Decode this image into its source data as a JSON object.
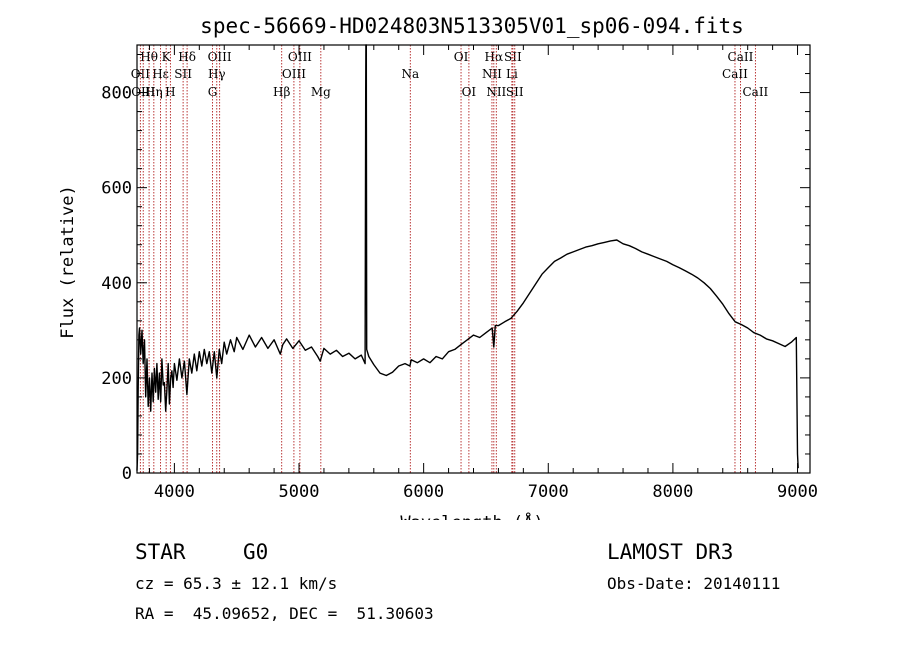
{
  "chart_data": {
    "type": "line",
    "title": "spec-56669-HD024803N513305V01_sp06-094.fits",
    "xlabel": "Wavelength (Å)",
    "ylabel": "Flux (relative)",
    "xlim": [
      3700,
      9100
    ],
    "ylim": [
      0,
      900
    ],
    "xticks": [
      4000,
      5000,
      6000,
      7000,
      8000,
      9000
    ],
    "yticks": [
      0,
      200,
      400,
      600,
      800
    ],
    "series": [
      {
        "name": "flux",
        "points": [
          [
            3700,
            5
          ],
          [
            3705,
            40
          ],
          [
            3710,
            180
          ],
          [
            3715,
            290
          ],
          [
            3720,
            305
          ],
          [
            3730,
            250
          ],
          [
            3740,
            300
          ],
          [
            3750,
            230
          ],
          [
            3760,
            280
          ],
          [
            3770,
            160
          ],
          [
            3780,
            240
          ],
          [
            3790,
            140
          ],
          [
            3800,
            200
          ],
          [
            3810,
            130
          ],
          [
            3820,
            210
          ],
          [
            3830,
            150
          ],
          [
            3840,
            220
          ],
          [
            3850,
            170
          ],
          [
            3860,
            230
          ],
          [
            3870,
            155
          ],
          [
            3880,
            210
          ],
          [
            3890,
            150
          ],
          [
            3900,
            240
          ],
          [
            3910,
            185
          ],
          [
            3920,
            190
          ],
          [
            3930,
            130
          ],
          [
            3940,
            175
          ],
          [
            3950,
            230
          ],
          [
            3960,
            145
          ],
          [
            3970,
            200
          ],
          [
            3980,
            215
          ],
          [
            3990,
            180
          ],
          [
            4000,
            230
          ],
          [
            4020,
            195
          ],
          [
            4040,
            240
          ],
          [
            4060,
            200
          ],
          [
            4080,
            235
          ],
          [
            4100,
            165
          ],
          [
            4120,
            240
          ],
          [
            4140,
            210
          ],
          [
            4160,
            250
          ],
          [
            4180,
            215
          ],
          [
            4200,
            255
          ],
          [
            4220,
            225
          ],
          [
            4240,
            260
          ],
          [
            4260,
            230
          ],
          [
            4280,
            255
          ],
          [
            4300,
            210
          ],
          [
            4320,
            255
          ],
          [
            4340,
            200
          ],
          [
            4360,
            260
          ],
          [
            4380,
            230
          ],
          [
            4400,
            275
          ],
          [
            4420,
            250
          ],
          [
            4450,
            280
          ],
          [
            4480,
            255
          ],
          [
            4500,
            285
          ],
          [
            4550,
            260
          ],
          [
            4600,
            290
          ],
          [
            4650,
            265
          ],
          [
            4700,
            285
          ],
          [
            4750,
            262
          ],
          [
            4800,
            280
          ],
          [
            4850,
            250
          ],
          [
            4870,
            270
          ],
          [
            4900,
            282
          ],
          [
            4950,
            262
          ],
          [
            5000,
            278
          ],
          [
            5050,
            258
          ],
          [
            5100,
            265
          ],
          [
            5150,
            245
          ],
          [
            5170,
            235
          ],
          [
            5200,
            262
          ],
          [
            5250,
            250
          ],
          [
            5300,
            258
          ],
          [
            5350,
            245
          ],
          [
            5400,
            252
          ],
          [
            5450,
            240
          ],
          [
            5500,
            248
          ],
          [
            5530,
            230
          ],
          [
            5535,
            800
          ],
          [
            5537,
            930
          ],
          [
            5540,
            900
          ],
          [
            5543,
            260
          ],
          [
            5560,
            245
          ],
          [
            5600,
            228
          ],
          [
            5650,
            210
          ],
          [
            5700,
            205
          ],
          [
            5750,
            212
          ],
          [
            5800,
            225
          ],
          [
            5850,
            230
          ],
          [
            5890,
            225
          ],
          [
            5900,
            238
          ],
          [
            5950,
            232
          ],
          [
            6000,
            240
          ],
          [
            6050,
            232
          ],
          [
            6100,
            245
          ],
          [
            6150,
            240
          ],
          [
            6200,
            255
          ],
          [
            6250,
            260
          ],
          [
            6300,
            270
          ],
          [
            6350,
            280
          ],
          [
            6400,
            290
          ],
          [
            6450,
            285
          ],
          [
            6500,
            295
          ],
          [
            6550,
            305
          ],
          [
            6563,
            265
          ],
          [
            6575,
            310
          ],
          [
            6600,
            310
          ],
          [
            6650,
            318
          ],
          [
            6700,
            325
          ],
          [
            6750,
            340
          ],
          [
            6800,
            358
          ],
          [
            6850,
            378
          ],
          [
            6900,
            398
          ],
          [
            6950,
            418
          ],
          [
            7000,
            432
          ],
          [
            7050,
            445
          ],
          [
            7100,
            452
          ],
          [
            7150,
            460
          ],
          [
            7200,
            465
          ],
          [
            7250,
            470
          ],
          [
            7300,
            475
          ],
          [
            7350,
            478
          ],
          [
            7400,
            482
          ],
          [
            7450,
            485
          ],
          [
            7500,
            488
          ],
          [
            7550,
            490
          ],
          [
            7600,
            482
          ],
          [
            7650,
            478
          ],
          [
            7700,
            472
          ],
          [
            7750,
            465
          ],
          [
            7800,
            460
          ],
          [
            7850,
            455
          ],
          [
            7900,
            450
          ],
          [
            7950,
            445
          ],
          [
            8000,
            438
          ],
          [
            8050,
            432
          ],
          [
            8100,
            425
          ],
          [
            8150,
            418
          ],
          [
            8200,
            410
          ],
          [
            8250,
            400
          ],
          [
            8300,
            388
          ],
          [
            8350,
            372
          ],
          [
            8400,
            355
          ],
          [
            8450,
            335
          ],
          [
            8500,
            318
          ],
          [
            8550,
            312
          ],
          [
            8600,
            305
          ],
          [
            8650,
            295
          ],
          [
            8700,
            290
          ],
          [
            8750,
            282
          ],
          [
            8800,
            278
          ],
          [
            8850,
            272
          ],
          [
            8900,
            266
          ],
          [
            8950,
            275
          ],
          [
            8990,
            285
          ],
          [
            9000,
            40
          ],
          [
            9005,
            10
          ]
        ]
      }
    ],
    "line_markers": [
      {
        "label": "Hθ",
        "wavelength": 3797,
        "row": 1
      },
      {
        "label": "OII",
        "wavelength": 3727,
        "row": 2
      },
      {
        "label": "OIII",
        "wavelength": 3750,
        "row": 3
      },
      {
        "label": "K",
        "wavelength": 3934,
        "row": 1
      },
      {
        "label": "Hε",
        "wavelength": 3889,
        "row": 2
      },
      {
        "label": "Hη",
        "wavelength": 3835,
        "row": 3
      },
      {
        "label": "SII",
        "wavelength": 4070,
        "row": 2
      },
      {
        "label": "H",
        "wavelength": 3968,
        "row": 3
      },
      {
        "label": "Hδ",
        "wavelength": 4102,
        "row": 1
      },
      {
        "label": "OIII",
        "wavelength": 4363,
        "row": 1
      },
      {
        "label": "Hγ",
        "wavelength": 4340,
        "row": 2
      },
      {
        "label": "G",
        "wavelength": 4306,
        "row": 3
      },
      {
        "label": "OIII",
        "wavelength": 5007,
        "row": 1
      },
      {
        "label": "OIII",
        "wavelength": 4959,
        "row": 2
      },
      {
        "label": "Hβ",
        "wavelength": 4861,
        "row": 3
      },
      {
        "label": "Mg",
        "wavelength": 5175,
        "row": 3
      },
      {
        "label": "Na",
        "wavelength": 5893,
        "row": 2
      },
      {
        "label": "OI",
        "wavelength": 6300,
        "row": 1
      },
      {
        "label": "OI",
        "wavelength": 6363,
        "row": 3
      },
      {
        "label": "Hα",
        "wavelength": 6563,
        "row": 1
      },
      {
        "label": "NII",
        "wavelength": 6548,
        "row": 2
      },
      {
        "label": "NII",
        "wavelength": 6583,
        "row": 3
      },
      {
        "label": "SII",
        "wavelength": 6716,
        "row": 1
      },
      {
        "label": "Li",
        "wavelength": 6708,
        "row": 2
      },
      {
        "label": "SII",
        "wavelength": 6731,
        "row": 3
      },
      {
        "label": "CaII",
        "wavelength": 8542,
        "row": 1
      },
      {
        "label": "CaII",
        "wavelength": 8498,
        "row": 2
      },
      {
        "label": "CaII",
        "wavelength": 8662,
        "row": 3
      }
    ],
    "colors": {
      "axis": "#000000",
      "line": "#000000",
      "marker": "#b22222"
    }
  },
  "info": {
    "object_class": "STAR",
    "subclass": "G0",
    "cz": "cz = 65.3 ± 12.1 km/s",
    "coords": "RA =  45.09652, DEC =  51.30603",
    "survey": "LAMOST DR3",
    "obs_date": "Obs-Date: 20140111"
  }
}
